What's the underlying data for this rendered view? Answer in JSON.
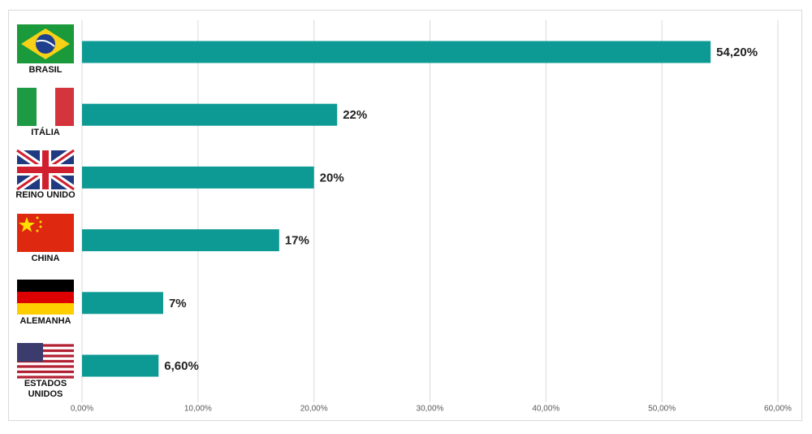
{
  "chart_data": {
    "type": "bar",
    "orientation": "horizontal",
    "categories": [
      "BRASIL",
      "ITÁLIA",
      "REINO UNIDO",
      "CHINA",
      "ALEMANHA",
      "ESTADOS UNIDOS"
    ],
    "values": [
      54.2,
      22,
      20,
      17,
      7,
      6.6
    ],
    "value_labels": [
      "54,20%",
      "22%",
      "20%",
      "17%",
      "7%",
      "6,60%"
    ],
    "color": "#0e9a94",
    "xlim": [
      0,
      60
    ],
    "xticks": [
      {
        "value": 0,
        "label": "0,00%"
      },
      {
        "value": 10,
        "label": "10,00%"
      },
      {
        "value": 20,
        "label": "20,00%"
      },
      {
        "value": 30,
        "label": "30,00%"
      },
      {
        "value": 40,
        "label": "40,00%"
      },
      {
        "value": 50,
        "label": "50,00%"
      },
      {
        "value": 60,
        "label": "60,00%"
      }
    ],
    "grid": true
  }
}
